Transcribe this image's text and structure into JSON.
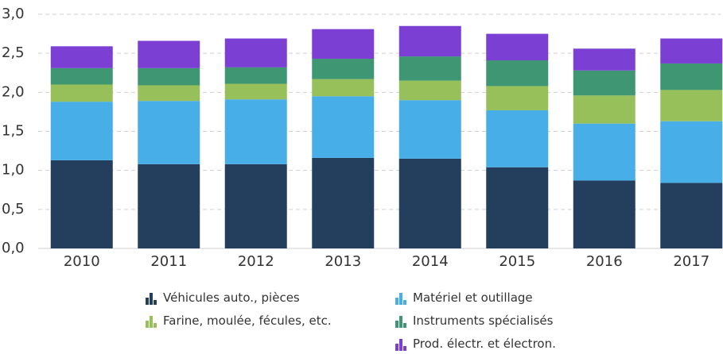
{
  "chart_data": {
    "type": "bar",
    "stacked": true,
    "categories": [
      "2010",
      "2011",
      "2012",
      "2013",
      "2014",
      "2015",
      "2016",
      "2017"
    ],
    "series": [
      {
        "name": "Véhicules auto., pièces",
        "color": "#243f5e",
        "values": [
          1.13,
          1.08,
          1.08,
          1.16,
          1.15,
          1.04,
          0.87,
          0.84
        ]
      },
      {
        "name": "Matériel et outillage",
        "color": "#48aee8",
        "values": [
          0.75,
          0.81,
          0.83,
          0.79,
          0.75,
          0.73,
          0.73,
          0.79
        ]
      },
      {
        "name": "Farine, moulée, fécules, etc.",
        "color": "#98c05a",
        "values": [
          0.22,
          0.2,
          0.2,
          0.22,
          0.25,
          0.31,
          0.36,
          0.4
        ]
      },
      {
        "name": "Instruments spécialisés",
        "color": "#3e9673",
        "values": [
          0.21,
          0.22,
          0.21,
          0.26,
          0.31,
          0.33,
          0.32,
          0.34
        ]
      },
      {
        "name": "Prod. électr. et électron.",
        "color": "#7b3fd4",
        "values": [
          0.28,
          0.35,
          0.37,
          0.38,
          0.39,
          0.34,
          0.28,
          0.32
        ]
      }
    ],
    "ylim": [
      0,
      3
    ],
    "yticks": [
      {
        "value": 0,
        "label": "0,0"
      },
      {
        "value": 0.5,
        "label": "0,5"
      },
      {
        "value": 1,
        "label": "1,0"
      },
      {
        "value": 1.5,
        "label": "1,5"
      },
      {
        "value": 2,
        "label": "2,0"
      },
      {
        "value": 2.5,
        "label": "2,5"
      },
      {
        "value": 3,
        "label": "3,0"
      }
    ],
    "grid": true
  }
}
